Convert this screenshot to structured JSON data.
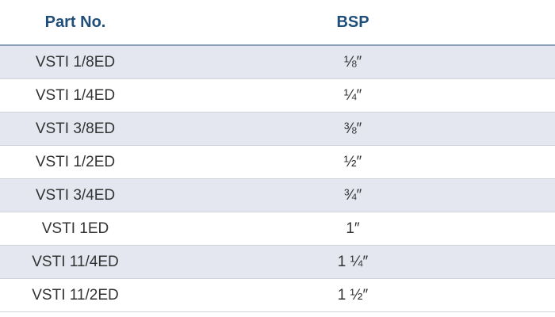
{
  "header": {
    "part_no": "Part No.",
    "bsp": "BSP"
  },
  "rows": [
    {
      "part": "VSTI 1/8ED",
      "bsp": "⅛″"
    },
    {
      "part": "VSTI 1/4ED",
      "bsp": "¼″"
    },
    {
      "part": "VSTI 3/8ED",
      "bsp": "⅜″"
    },
    {
      "part": "VSTI 1/2ED",
      "bsp": "½″"
    },
    {
      "part": "VSTI 3/4ED",
      "bsp": "¾″"
    },
    {
      "part": "VSTI 1ED",
      "bsp": "1″"
    },
    {
      "part": "VSTI 11/4ED",
      "bsp": "1 ¼″"
    },
    {
      "part": "VSTI 11/2ED",
      "bsp": "1 ½″"
    }
  ],
  "colors": {
    "header_text": "#1f4e79",
    "shaded_row": "#e4e7f0",
    "row_text": "#333333"
  }
}
